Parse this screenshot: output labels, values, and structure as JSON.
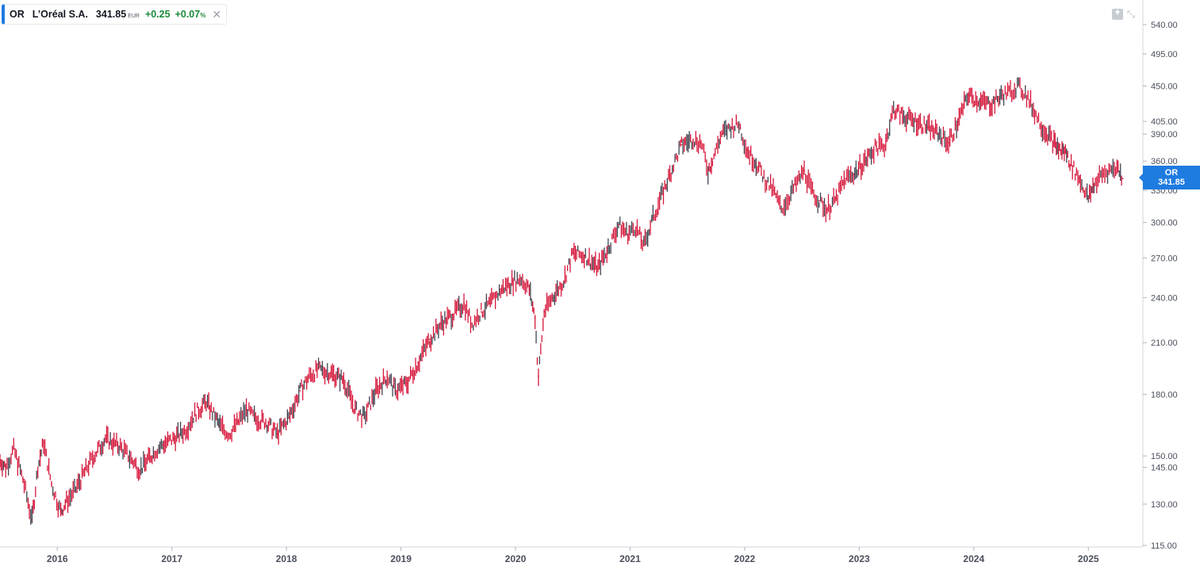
{
  "legend": {
    "symbol": "OR",
    "name": "L’Oréal S.A.",
    "price": "341.85",
    "currency": "EUR",
    "change": "+0.25",
    "change_pct": "+0.07",
    "pct_sign": "%",
    "close_icon": "close-icon"
  },
  "toolbar": {
    "download_icon": "download-icon",
    "collapse_icon": "collapse-icon"
  },
  "price_tag": {
    "symbol": "OR",
    "value": "341.85"
  },
  "colors": {
    "down": "#d6173a",
    "up": "#3f4450",
    "accent": "#1e7be0",
    "positive": "#1a8a3a"
  },
  "chart_data": {
    "type": "line",
    "scale": "log",
    "ylim": [
      115,
      570
    ],
    "xlim": [
      2015.5,
      2025.4
    ],
    "y_ticks": [
      115,
      130,
      145,
      150,
      180,
      210,
      240,
      270,
      300,
      330,
      360,
      390,
      405,
      450,
      495,
      540
    ],
    "y_tick_labels": [
      "115.00",
      "130.00",
      "145.00",
      "150.00",
      "180.00",
      "210.00",
      "240.00",
      "270.00",
      "300.00",
      "330.00",
      "360.00",
      "390.00",
      "405.00",
      "450.00",
      "495.00",
      "540.00"
    ],
    "x_ticks": [
      2016,
      2017,
      2018,
      2019,
      2020,
      2021,
      2022,
      2023,
      2024,
      2025
    ],
    "x_tick_labels": [
      "2016",
      "2017",
      "2018",
      "2019",
      "2020",
      "2021",
      "2022",
      "2023",
      "2024",
      "2025"
    ],
    "series": [
      {
        "x": [
          2015.5,
          2015.55,
          2015.62,
          2015.7,
          2015.78,
          2015.83,
          2015.88,
          2015.95,
          2016.03,
          2016.08,
          2016.15,
          2016.25,
          2016.32,
          2016.42,
          2016.55,
          2016.62,
          2016.72,
          2016.85,
          2016.92,
          2017.02,
          2017.12,
          2017.2,
          2017.3,
          2017.42,
          2017.5,
          2017.58,
          2017.65,
          2017.72,
          2017.82,
          2017.92,
          2018.02,
          2018.12,
          2018.2,
          2018.28,
          2018.38,
          2018.5,
          2018.6,
          2018.68,
          2018.78,
          2018.88,
          2018.95,
          2019.05,
          2019.15,
          2019.25,
          2019.35,
          2019.45,
          2019.55,
          2019.62,
          2019.7,
          2019.78,
          2019.88,
          2019.98,
          2020.05,
          2020.12,
          2020.17,
          2020.2,
          2020.25,
          2020.32,
          2020.42,
          2020.5,
          2020.6,
          2020.72,
          2020.82,
          2020.9,
          2020.98,
          2021.05,
          2021.12,
          2021.2,
          2021.28,
          2021.38,
          2021.45,
          2021.55,
          2021.62,
          2021.68,
          2021.72,
          2021.8,
          2021.88,
          2021.95,
          2022.02,
          2022.1,
          2022.18,
          2022.25,
          2022.32,
          2022.38,
          2022.45,
          2022.52,
          2022.58,
          2022.65,
          2022.72,
          2022.8,
          2022.88,
          2022.95,
          2023.05,
          2023.15,
          2023.22,
          2023.3,
          2023.4,
          2023.5,
          2023.6,
          2023.7,
          2023.78,
          2023.85,
          2023.95,
          2024.05,
          2024.15,
          2024.25,
          2024.32,
          2024.38,
          2024.45,
          2024.52,
          2024.6,
          2024.7,
          2024.75,
          2024.8,
          2024.85,
          2024.92,
          2025.0,
          2025.05,
          2025.12,
          2025.18,
          2025.25,
          2025.3
        ],
        "values": [
          148,
          145,
          153,
          140,
          124,
          145,
          156,
          138,
          127,
          131,
          135,
          144,
          150,
          158,
          154,
          150,
          144,
          152,
          155,
          158,
          162,
          170,
          176,
          164,
          160,
          166,
          172,
          168,
          166,
          160,
          168,
          182,
          190,
          194,
          192,
          188,
          172,
          168,
          182,
          190,
          182,
          186,
          198,
          212,
          222,
          228,
          236,
          222,
          230,
          236,
          246,
          252,
          254,
          246,
          226,
          190,
          230,
          240,
          252,
          274,
          272,
          262,
          280,
          298,
          290,
          296,
          280,
          304,
          326,
          356,
          378,
          384,
          380,
          350,
          362,
          390,
          398,
          402,
          372,
          358,
          340,
          330,
          312,
          322,
          336,
          350,
          330,
          320,
          312,
          322,
          342,
          346,
          360,
          376,
          376,
          420,
          410,
          405,
          398,
          390,
          380,
          400,
          438,
          430,
          426,
          438,
          442,
          450,
          440,
          420,
          398,
          380,
          372,
          370,
          356,
          342,
          322,
          336,
          346,
          350,
          354,
          341.85
        ]
      }
    ]
  }
}
